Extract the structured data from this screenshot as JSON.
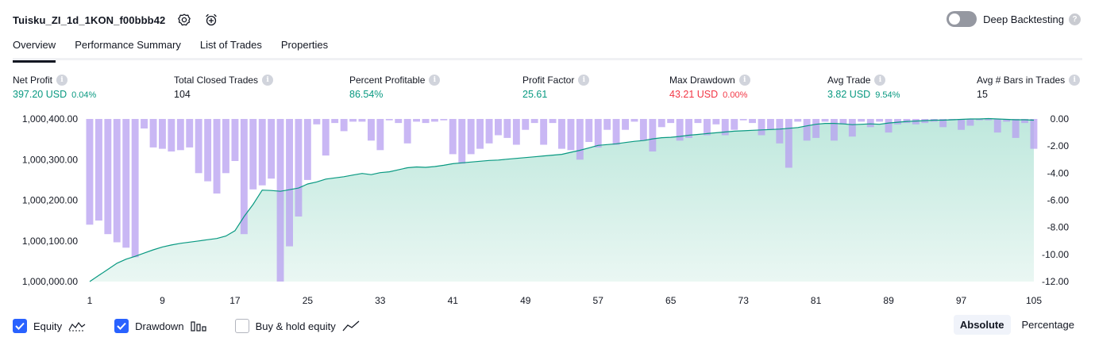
{
  "header": {
    "strategy_name": "Tuisku_ZI_1d_1KON_f00bbb42",
    "settings_icon": "gear-icon",
    "add_alert_icon": "alarm-clock-plus-icon",
    "deep_backtesting_label": "Deep Backtesting",
    "deep_backtesting_enabled": false
  },
  "tabs": [
    {
      "label": "Overview",
      "active": true
    },
    {
      "label": "Performance Summary",
      "active": false
    },
    {
      "label": "List of Trades",
      "active": false
    },
    {
      "label": "Properties",
      "active": false
    }
  ],
  "metrics": [
    {
      "label": "Net Profit",
      "value": "397.20 USD",
      "pct": "0.04%",
      "color": "#089981"
    },
    {
      "label": "Total Closed Trades",
      "value": "104",
      "pct": "",
      "color": "#131722"
    },
    {
      "label": "Percent Profitable",
      "value": "86.54%",
      "pct": "",
      "color": "#089981"
    },
    {
      "label": "Profit Factor",
      "value": "25.61",
      "pct": "",
      "color": "#089981"
    },
    {
      "label": "Max Drawdown",
      "value": "43.21 USD",
      "pct": "0.00%",
      "color": "#f23645"
    },
    {
      "label": "Avg Trade",
      "value": "3.82 USD",
      "pct": "9.54%",
      "color": "#089981"
    },
    {
      "label": "Avg # Bars in Trades",
      "value": "15",
      "pct": "",
      "color": "#131722"
    }
  ],
  "chart_data": {
    "type": "area",
    "x_tick_labels": [
      "1",
      "9",
      "17",
      "25",
      "33",
      "41",
      "49",
      "57",
      "65",
      "73",
      "81",
      "89",
      "97",
      "105"
    ],
    "x_range": [
      1,
      105
    ],
    "left_axis": {
      "tick_labels": [
        "1,000,400.00",
        "1,000,300.00",
        "1,000,200.00",
        "1,000,100.00",
        "1,000,000.00"
      ],
      "range": [
        1000000,
        1000400
      ]
    },
    "right_axis": {
      "tick_labels": [
        "0.00",
        "-2.00",
        "-4.00",
        "-6.00",
        "-8.00",
        "-10.00",
        "-12.00"
      ],
      "range": [
        -12,
        0
      ]
    },
    "series": [
      {
        "name": "Equity",
        "color": "#089981",
        "fill": "#d7f1eb",
        "values": [
          0,
          15,
          30,
          45,
          55,
          62,
          70,
          78,
          85,
          90,
          94,
          97,
          100,
          103,
          106,
          112,
          125,
          160,
          190,
          225,
          224,
          222,
          226,
          230,
          240,
          245,
          252,
          255,
          258,
          262,
          266,
          263,
          268,
          270,
          275,
          280,
          282,
          281,
          283,
          286,
          290,
          292,
          294,
          296,
          298,
          299,
          301,
          303,
          305,
          307,
          309,
          311,
          313,
          318,
          323,
          329,
          335,
          337,
          339,
          342,
          345,
          347,
          351,
          354,
          355,
          357,
          360,
          362,
          364,
          366,
          368,
          370,
          371,
          372,
          373,
          374,
          375,
          377,
          379,
          383,
          387,
          389,
          389,
          388,
          386,
          387,
          388,
          387,
          390,
          392,
          394,
          395,
          396,
          397,
          397,
          398,
          399,
          400,
          400,
          401,
          400,
          399,
          398,
          398,
          397
        ]
      },
      {
        "name": "Drawdown",
        "color": "#b79ff0",
        "underwater_color": "#98a4e6",
        "values": [
          -7.8,
          -7.5,
          -8.5,
          -9.1,
          -9.5,
          -10.2,
          -0.7,
          -2.1,
          -2.2,
          -2.4,
          -2.3,
          -2.1,
          -4.0,
          -4.6,
          -5.5,
          -4.0,
          -3.1,
          -8.5,
          -5.2,
          -4.9,
          -4.4,
          -12.0,
          -9.4,
          -7.2,
          -4.5,
          -0.4,
          -2.7,
          -0.3,
          -0.9,
          -0.2,
          -0.2,
          -1.6,
          -2.3,
          -0.1,
          -0.3,
          -1.8,
          -0.2,
          -0.3,
          -0.2,
          -0.1,
          -2.6,
          -3.3,
          -2.6,
          -2.2,
          -1.8,
          -1.2,
          -1.4,
          -1.9,
          -0.8,
          -0.3,
          -1.9,
          -0.3,
          -2.2,
          -2.3,
          -3.0,
          -1.7,
          -2.1,
          -0.8,
          -1.9,
          -0.8,
          -0.2,
          -1.6,
          -2.4,
          -0.6,
          -0.3,
          -1.6,
          -1.4,
          -0.3,
          -1.2,
          -0.4,
          -1.2,
          -0.8,
          -0.1,
          -0.3,
          -1.2,
          -0.8,
          -1.8,
          -3.6,
          -0.2,
          -1.6,
          -1.4,
          -0.2,
          -1.6,
          -0.4,
          -1.3,
          -0.2,
          -0.6,
          -0.2,
          -1.0,
          -0.4,
          -0.3,
          -0.4,
          -0.3,
          -0.2,
          -0.6,
          -0.1,
          -0.8,
          -0.5,
          -0.1,
          -0.1,
          -1.0,
          -0.2,
          -1.4,
          -0.3,
          -2.2
        ]
      }
    ]
  },
  "legend": [
    {
      "label": "Equity",
      "checked": true,
      "icon": "area-chart-icon"
    },
    {
      "label": "Drawdown",
      "checked": true,
      "icon": "bar-chart-icon"
    },
    {
      "label": "Buy & hold equity",
      "checked": false,
      "icon": "line-chart-icon"
    }
  ],
  "mode": {
    "absolute_label": "Absolute",
    "percentage_label": "Percentage",
    "selected": "Absolute"
  }
}
